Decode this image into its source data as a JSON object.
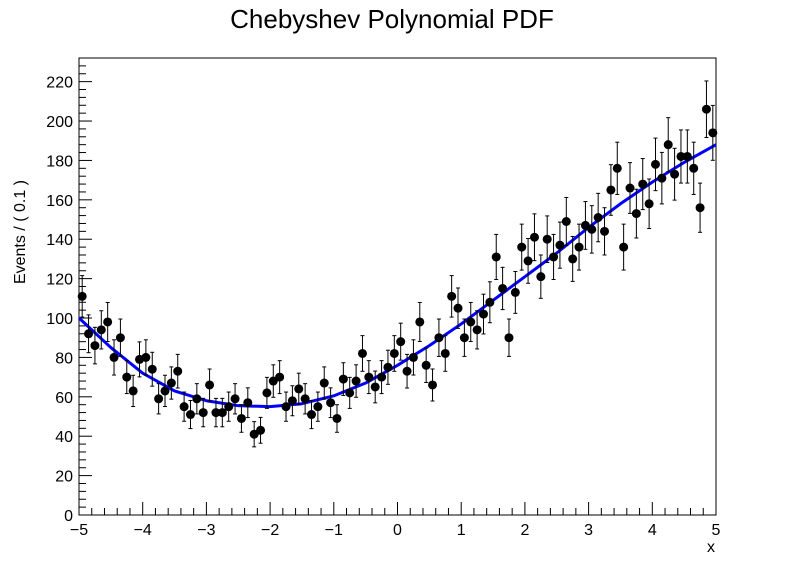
{
  "chart_data": {
    "type": "scatter",
    "title": "Chebyshev Polynomial PDF",
    "xlabel": "x",
    "ylabel": "Events / ( 0.1 )",
    "xlim": [
      -5,
      5
    ],
    "ylim": [
      0,
      232
    ],
    "x_ticks": [
      -5,
      -4,
      -3,
      -2,
      -1,
      0,
      1,
      2,
      3,
      4,
      5
    ],
    "x_tick_labels": [
      "−5",
      "−4",
      "−3",
      "−2",
      "−1",
      "0",
      "1",
      "2",
      "3",
      "4",
      "5"
    ],
    "y_ticks": [
      0,
      20,
      40,
      60,
      80,
      100,
      120,
      140,
      160,
      180,
      200,
      220
    ],
    "y_tick_labels": [
      "0",
      "20",
      "40",
      "60",
      "80",
      "100",
      "120",
      "140",
      "160",
      "180",
      "200",
      "220"
    ],
    "grid": false,
    "legend": "none",
    "colors": {
      "points": "#000000",
      "curve": "#0000ff"
    },
    "series": [
      {
        "type": "scatter-errorbars",
        "x": [
          -4.95,
          -4.85,
          -4.75,
          -4.65,
          -4.55,
          -4.45,
          -4.35,
          -4.25,
          -4.15,
          -4.05,
          -3.95,
          -3.85,
          -3.75,
          -3.65,
          -3.55,
          -3.45,
          -3.35,
          -3.25,
          -3.15,
          -3.05,
          -2.95,
          -2.85,
          -2.75,
          -2.65,
          -2.55,
          -2.45,
          -2.35,
          -2.25,
          -2.15,
          -2.05,
          -1.95,
          -1.85,
          -1.75,
          -1.65,
          -1.55,
          -1.45,
          -1.35,
          -1.25,
          -1.15,
          -1.05,
          -0.95,
          -0.85,
          -0.75,
          -0.65,
          -0.55,
          -0.45,
          -0.35,
          -0.25,
          -0.15,
          -0.05,
          0.05,
          0.15,
          0.25,
          0.35,
          0.45,
          0.55,
          0.65,
          0.75,
          0.85,
          0.95,
          1.05,
          1.15,
          1.25,
          1.35,
          1.45,
          1.55,
          1.65,
          1.75,
          1.85,
          1.95,
          2.05,
          2.15,
          2.25,
          2.35,
          2.45,
          2.55,
          2.65,
          2.75,
          2.85,
          2.95,
          3.05,
          3.15,
          3.25,
          3.35,
          3.45,
          3.55,
          3.65,
          3.75,
          3.85,
          3.95,
          4.05,
          4.15,
          4.25,
          4.35,
          4.45,
          4.55,
          4.65,
          4.75,
          4.85,
          4.95
        ],
        "y": [
          111,
          92,
          86,
          94,
          98,
          80,
          90,
          70,
          63,
          79,
          80,
          74,
          59,
          63,
          67,
          73,
          55,
          51,
          59,
          52,
          66,
          52,
          52,
          55,
          59,
          49,
          57,
          41,
          43,
          62,
          68,
          70,
          55,
          58,
          64,
          59,
          51,
          55,
          67,
          57,
          49,
          69,
          62,
          68,
          82,
          70,
          65,
          70,
          75,
          82,
          88,
          73,
          80,
          98,
          76,
          66,
          90,
          82,
          111,
          105,
          90,
          98,
          94,
          102,
          108,
          131,
          115,
          90,
          113,
          136,
          129,
          141,
          121,
          140,
          131,
          137,
          149,
          130,
          136,
          147,
          145,
          151,
          144,
          165,
          176,
          136,
          166,
          153,
          168,
          158,
          178,
          171,
          188,
          173,
          182,
          182,
          176,
          156,
          206,
          194
        ]
      },
      {
        "type": "curve",
        "x": [
          -5,
          -4.5,
          -4,
          -3.5,
          -3,
          -2.5,
          -2,
          -1.5,
          -1,
          -0.5,
          0,
          0.5,
          1,
          1.5,
          2,
          2.5,
          3,
          3.5,
          4,
          4.5,
          5
        ],
        "y": [
          100,
          85,
          72,
          63,
          58,
          55.5,
          55,
          56.5,
          60.5,
          67,
          76,
          86,
          97,
          109,
          121,
          133,
          146,
          158,
          169,
          179,
          188
        ]
      }
    ]
  }
}
